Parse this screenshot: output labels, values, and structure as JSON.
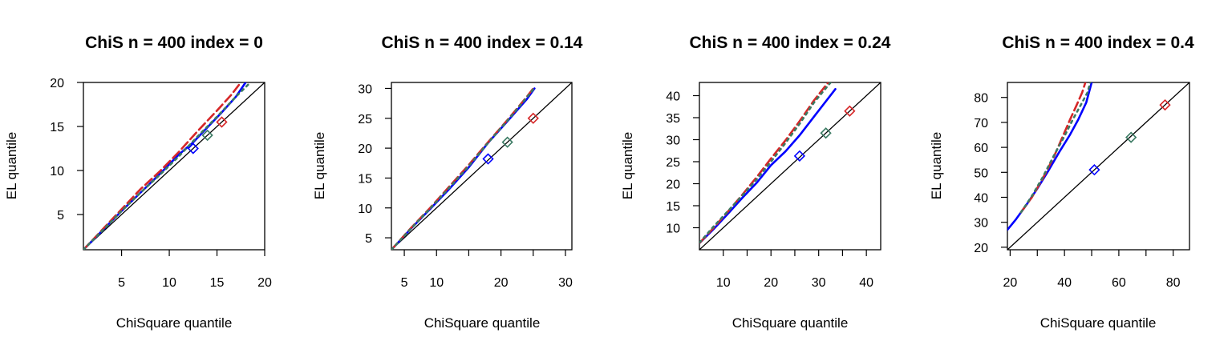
{
  "chart_data": [
    {
      "type": "line",
      "title": "ChiS n = 400 index = 0",
      "xlabel": "ChiSquare quantile",
      "ylabel": "EL quantile",
      "xlim": [
        1,
        20
      ],
      "ylim": [
        1,
        20
      ],
      "xticks": [
        5,
        10,
        15,
        20
      ],
      "yticks": [
        5,
        10,
        15,
        20
      ],
      "grid": false,
      "series": [
        {
          "color": "#0000ff",
          "style": "solid",
          "values": [
            [
              1,
              1
            ],
            [
              3,
              3.2
            ],
            [
              5,
              5.4
            ],
            [
              7,
              7.5
            ],
            [
              9,
              9.6
            ],
            [
              11,
              11.8
            ],
            [
              12.5,
              13.2
            ],
            [
              14,
              14.9
            ],
            [
              15.5,
              16.6
            ],
            [
              17,
              18.4
            ],
            [
              18,
              20
            ]
          ],
          "marker": [
            12.5,
            12.5
          ]
        },
        {
          "color": "#d62728",
          "style": "dashed",
          "values": [
            [
              1,
              1
            ],
            [
              3,
              3.3
            ],
            [
              5,
              5.6
            ],
            [
              7,
              7.9
            ],
            [
              9,
              9.9
            ],
            [
              11,
              12.1
            ],
            [
              13,
              14.5
            ],
            [
              15,
              16.8
            ],
            [
              16.5,
              18.6
            ],
            [
              17.5,
              20
            ]
          ],
          "marker": [
            15.5,
            15.5
          ]
        },
        {
          "color": "#3b7a63",
          "style": "dotted",
          "values": [
            [
              1,
              1
            ],
            [
              3,
              3.2
            ],
            [
              5,
              5.4
            ],
            [
              7,
              7.5
            ],
            [
              9,
              9.5
            ],
            [
              11,
              11.6
            ],
            [
              13,
              13.9
            ],
            [
              15,
              16.1
            ],
            [
              17,
              18.4
            ],
            [
              18.5,
              20
            ]
          ],
          "marker": [
            14,
            14
          ]
        }
      ]
    },
    {
      "type": "line",
      "title": "ChiS n = 400 index = 0.14",
      "xlabel": "ChiSquare quantile",
      "ylabel": "EL quantile",
      "xlim": [
        3,
        31
      ],
      "ylim": [
        3,
        31
      ],
      "xticks": [
        5,
        10,
        15,
        20,
        25,
        30
      ],
      "xticklabels": [
        "5",
        "10",
        "",
        "20",
        "",
        "30"
      ],
      "yticks": [
        5,
        10,
        15,
        20,
        25,
        30
      ],
      "grid": false,
      "series": [
        {
          "color": "#0000ff",
          "style": "solid",
          "values": [
            [
              3,
              3
            ],
            [
              6,
              6.5
            ],
            [
              9,
              9.8
            ],
            [
              12,
              13.2
            ],
            [
              15,
              16.8
            ],
            [
              18,
              20.9
            ],
            [
              21,
              24.5
            ],
            [
              24,
              28.2
            ],
            [
              25.2,
              30
            ]
          ],
          "marker": [
            18,
            18.2
          ]
        },
        {
          "color": "#d62728",
          "style": "dashed",
          "values": [
            [
              3,
              3
            ],
            [
              6,
              6.6
            ],
            [
              9,
              10
            ],
            [
              12,
              13.6
            ],
            [
              15,
              17.2
            ],
            [
              18,
              21
            ],
            [
              21,
              24.7
            ],
            [
              24,
              28.6
            ],
            [
              25,
              30
            ]
          ],
          "marker": [
            25,
            25
          ]
        },
        {
          "color": "#3b7a63",
          "style": "dotted",
          "values": [
            [
              3,
              3
            ],
            [
              6,
              6.5
            ],
            [
              9,
              9.9
            ],
            [
              12,
              13.4
            ],
            [
              15,
              17
            ],
            [
              18,
              20.9
            ],
            [
              21,
              24.6
            ],
            [
              24,
              28.5
            ],
            [
              25.1,
              30
            ]
          ],
          "marker": [
            21,
            21
          ]
        }
      ]
    },
    {
      "type": "line",
      "title": "ChiS n = 400 index = 0.24",
      "xlabel": "ChiSquare quantile",
      "ylabel": "EL quantile",
      "xlim": [
        5,
        43
      ],
      "ylim": [
        5,
        43
      ],
      "xticks": [
        10,
        15,
        20,
        25,
        30,
        35,
        40
      ],
      "xticklabels": [
        "10",
        "",
        "20",
        "",
        "30",
        "",
        "40"
      ],
      "yticks": [
        10,
        15,
        20,
        25,
        30,
        35,
        40
      ],
      "grid": false,
      "series": [
        {
          "color": "#0000ff",
          "style": "solid",
          "values": [
            [
              5,
              6.5
            ],
            [
              8,
              9.7
            ],
            [
              11,
              13.2
            ],
            [
              14,
              16.8
            ],
            [
              17,
              20.2
            ],
            [
              20,
              24.2
            ],
            [
              23,
              27.3
            ],
            [
              26,
              31
            ],
            [
              29,
              35.2
            ],
            [
              32,
              39.4
            ],
            [
              33.5,
              41.5
            ]
          ],
          "marker": [
            26,
            26.3
          ]
        },
        {
          "color": "#d62728",
          "style": "dashed",
          "values": [
            [
              5,
              6.5
            ],
            [
              8,
              10
            ],
            [
              11,
              13.7
            ],
            [
              14,
              17.5
            ],
            [
              17,
              21.5
            ],
            [
              20,
              25.7
            ],
            [
              23,
              29.8
            ],
            [
              26,
              34.2
            ],
            [
              29,
              38.9
            ],
            [
              32,
              43
            ]
          ],
          "marker": [
            36.5,
            36.5
          ]
        },
        {
          "color": "#3b7a63",
          "style": "dotted",
          "values": [
            [
              5,
              6.6
            ],
            [
              8,
              10.3
            ],
            [
              11,
              13.8
            ],
            [
              14,
              17.3
            ],
            [
              17,
              21
            ],
            [
              20,
              25
            ],
            [
              23,
              29.2
            ],
            [
              26,
              33.6
            ],
            [
              29,
              38.4
            ],
            [
              32.5,
              43
            ]
          ],
          "marker": [
            31.5,
            31.5
          ]
        }
      ]
    },
    {
      "type": "line",
      "title": "ChiS n = 400 index = 0.4",
      "xlabel": "ChiSquare quantile",
      "ylabel": "EL quantile",
      "xlim": [
        19,
        86
      ],
      "ylim": [
        19,
        86
      ],
      "xticks": [
        20,
        30,
        40,
        50,
        60,
        70,
        80
      ],
      "xticklabels": [
        "20",
        "",
        "40",
        "",
        "60",
        "",
        "80"
      ],
      "yticks": [
        20,
        30,
        40,
        50,
        60,
        70,
        80
      ],
      "grid": false,
      "series": [
        {
          "color": "#0000ff",
          "style": "solid",
          "values": [
            [
              19,
              27
            ],
            [
              22,
              31
            ],
            [
              26,
              37
            ],
            [
              30,
              43.5
            ],
            [
              34,
              50.5
            ],
            [
              38,
              58
            ],
            [
              42,
              65
            ],
            [
              45,
              71
            ],
            [
              48,
              78
            ],
            [
              50,
              86
            ]
          ],
          "marker": [
            51,
            51
          ]
        },
        {
          "color": "#d62728",
          "style": "dashed",
          "values": [
            [
              24,
              34
            ],
            [
              28,
              40
            ],
            [
              32,
              47.5
            ],
            [
              36,
              56
            ],
            [
              39,
              63.5
            ],
            [
              42,
              71
            ],
            [
              44.5,
              77
            ],
            [
              46.5,
              82
            ],
            [
              47.7,
              86
            ]
          ],
          "marker": [
            77,
            77
          ]
        },
        {
          "color": "#3b7a63",
          "style": "dotted",
          "values": [
            [
              24,
              34
            ],
            [
              28,
              40.5
            ],
            [
              32,
              48
            ],
            [
              36,
              56.5
            ],
            [
              40,
              64.5
            ],
            [
              43,
              71
            ],
            [
              46,
              77
            ],
            [
              48.5,
              82
            ],
            [
              49.5,
              86
            ]
          ],
          "marker": [
            64.5,
            64
          ]
        }
      ]
    }
  ]
}
